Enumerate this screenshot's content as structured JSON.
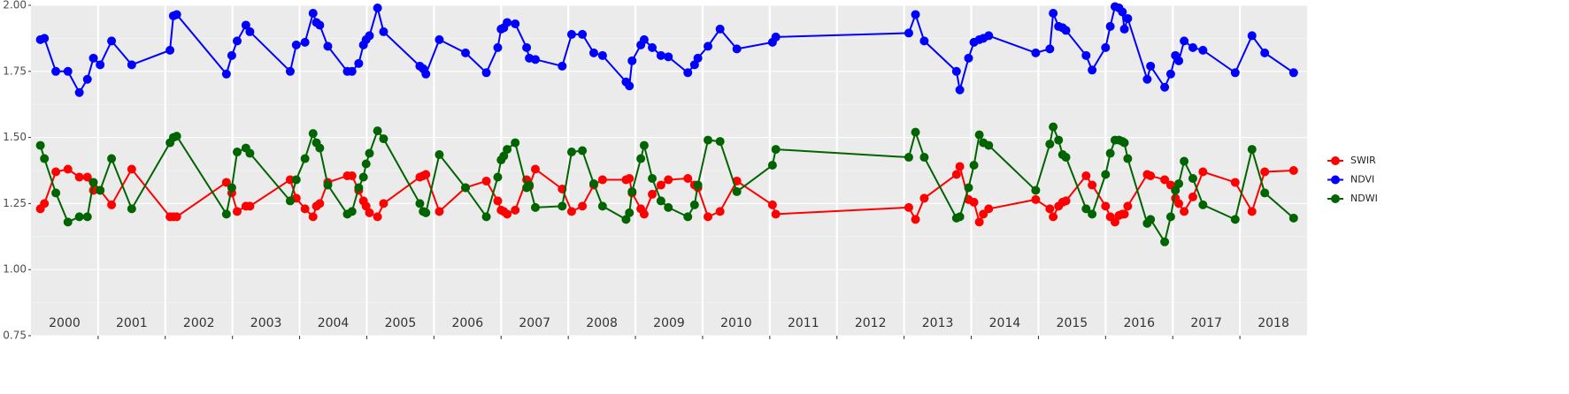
{
  "chart_data": {
    "type": "line",
    "x": [
      2000.14,
      2000.2,
      2000.37,
      2000.55,
      2000.72,
      2000.84,
      2000.93,
      2001.03,
      2001.2,
      2001.5,
      2002.07,
      2002.12,
      2002.17,
      2002.91,
      2002.99,
      2003.07,
      2003.2,
      2003.26,
      2003.86,
      2003.95,
      2004.08,
      2004.2,
      2004.25,
      2004.3,
      2004.42,
      2004.71,
      2004.78,
      2004.88,
      2004.95,
      2004.99,
      2005.04,
      2005.16,
      2005.25,
      2005.79,
      2005.84,
      2005.88,
      2006.08,
      2006.47,
      2006.78,
      2006.95,
      2007.0,
      2007.04,
      2007.09,
      2007.21,
      2007.38,
      2007.42,
      2007.51,
      2007.91,
      2008.05,
      2008.21,
      2008.38,
      2008.51,
      2008.86,
      2008.91,
      2008.95,
      2009.08,
      2009.13,
      2009.25,
      2009.38,
      2009.49,
      2009.78,
      2009.88,
      2009.93,
      2010.08,
      2010.26,
      2010.51,
      2011.04,
      2011.09,
      2013.07,
      2013.17,
      2013.3,
      2013.78,
      2013.83,
      2013.96,
      2014.04,
      2014.12,
      2014.18,
      2014.26,
      2014.96,
      2015.17,
      2015.22,
      2015.3,
      2015.36,
      2015.41,
      2015.71,
      2015.8,
      2016.0,
      2016.07,
      2016.14,
      2016.2,
      2016.25,
      2016.28,
      2016.33,
      2016.62,
      2016.67,
      2016.88,
      2016.97,
      2017.04,
      2017.09,
      2017.17,
      2017.3,
      2017.45,
      2017.93,
      2018.18,
      2018.37,
      2018.8
    ],
    "series": [
      {
        "name": "SWIR",
        "color": "#ff0000",
        "values": [
          1.23,
          1.25,
          1.37,
          1.38,
          1.35,
          1.35,
          1.3,
          1.3,
          1.245,
          1.38,
          1.2,
          1.2,
          1.2,
          1.33,
          1.29,
          1.22,
          1.24,
          1.24,
          1.34,
          1.27,
          1.23,
          1.2,
          1.24,
          1.25,
          1.33,
          1.355,
          1.355,
          1.3,
          1.26,
          1.24,
          1.215,
          1.2,
          1.25,
          1.35,
          1.355,
          1.36,
          1.22,
          1.31,
          1.335,
          1.26,
          1.225,
          1.22,
          1.21,
          1.225,
          1.34,
          1.315,
          1.38,
          1.305,
          1.22,
          1.24,
          1.32,
          1.34,
          1.34,
          1.345,
          1.29,
          1.23,
          1.21,
          1.285,
          1.32,
          1.34,
          1.345,
          1.32,
          1.31,
          1.2,
          1.22,
          1.335,
          1.245,
          1.21,
          1.235,
          1.19,
          1.27,
          1.36,
          1.39,
          1.265,
          1.255,
          1.18,
          1.21,
          1.23,
          1.265,
          1.23,
          1.2,
          1.24,
          1.255,
          1.26,
          1.355,
          1.32,
          1.24,
          1.2,
          1.18,
          1.205,
          1.21,
          1.21,
          1.24,
          1.36,
          1.355,
          1.34,
          1.32,
          1.27,
          1.25,
          1.22,
          1.275,
          1.37,
          1.33,
          1.22,
          1.37,
          1.375
        ]
      },
      {
        "name": "NDVI",
        "color": "#0000ff",
        "values": [
          1.87,
          1.875,
          1.75,
          1.75,
          1.67,
          1.72,
          1.8,
          1.775,
          1.865,
          1.775,
          1.83,
          1.96,
          1.965,
          1.74,
          1.81,
          1.865,
          1.925,
          1.9,
          1.75,
          1.85,
          1.86,
          1.97,
          1.935,
          1.925,
          1.845,
          1.75,
          1.75,
          1.78,
          1.85,
          1.87,
          1.885,
          1.99,
          1.9,
          1.77,
          1.76,
          1.74,
          1.87,
          1.82,
          1.745,
          1.84,
          1.91,
          1.915,
          1.935,
          1.93,
          1.84,
          1.8,
          1.795,
          1.77,
          1.89,
          1.89,
          1.82,
          1.81,
          1.71,
          1.695,
          1.79,
          1.85,
          1.87,
          1.84,
          1.81,
          1.805,
          1.745,
          1.775,
          1.8,
          1.845,
          1.91,
          1.835,
          1.86,
          1.88,
          1.895,
          1.965,
          1.865,
          1.75,
          1.68,
          1.8,
          1.86,
          1.87,
          1.875,
          1.885,
          1.82,
          1.835,
          1.97,
          1.92,
          1.915,
          1.905,
          1.81,
          1.755,
          1.84,
          1.92,
          1.995,
          1.99,
          1.975,
          1.91,
          1.95,
          1.72,
          1.77,
          1.69,
          1.74,
          1.81,
          1.79,
          1.865,
          1.84,
          1.83,
          1.745,
          1.885,
          1.82,
          1.745
        ]
      },
      {
        "name": "NDWI",
        "color": "#006400",
        "values": [
          1.47,
          1.42,
          1.29,
          1.18,
          1.2,
          1.2,
          1.33,
          1.3,
          1.42,
          1.23,
          1.48,
          1.5,
          1.505,
          1.21,
          1.31,
          1.445,
          1.46,
          1.44,
          1.26,
          1.34,
          1.42,
          1.515,
          1.48,
          1.46,
          1.32,
          1.21,
          1.22,
          1.31,
          1.35,
          1.4,
          1.44,
          1.525,
          1.495,
          1.25,
          1.22,
          1.215,
          1.435,
          1.31,
          1.2,
          1.35,
          1.415,
          1.43,
          1.455,
          1.48,
          1.31,
          1.32,
          1.235,
          1.24,
          1.445,
          1.45,
          1.325,
          1.24,
          1.19,
          1.215,
          1.295,
          1.42,
          1.47,
          1.345,
          1.26,
          1.235,
          1.2,
          1.245,
          1.32,
          1.49,
          1.485,
          1.295,
          1.395,
          1.455,
          1.425,
          1.52,
          1.425,
          1.195,
          1.2,
          1.31,
          1.395,
          1.51,
          1.48,
          1.47,
          1.3,
          1.475,
          1.54,
          1.49,
          1.435,
          1.425,
          1.23,
          1.21,
          1.36,
          1.44,
          1.49,
          1.49,
          1.485,
          1.48,
          1.42,
          1.175,
          1.19,
          1.105,
          1.2,
          1.3,
          1.325,
          1.41,
          1.345,
          1.245,
          1.19,
          1.455,
          1.29,
          1.195
        ]
      }
    ],
    "xlim": [
      2000,
      2019
    ],
    "xticks": [
      2001,
      2002,
      2003,
      2004,
      2005,
      2006,
      2007,
      2008,
      2009,
      2010,
      2011,
      2012,
      2013,
      2014,
      2015,
      2016,
      2017,
      2018
    ],
    "year_labels": [
      2000,
      2001,
      2002,
      2003,
      2004,
      2005,
      2006,
      2007,
      2008,
      2009,
      2010,
      2011,
      2012,
      2013,
      2014,
      2015,
      2016,
      2017,
      2018
    ],
    "ylim": [
      0.75,
      2.0
    ],
    "yticks": [
      {
        "value": 0.75,
        "label": "0.75"
      },
      {
        "value": 1.0,
        "label": "1.00"
      },
      {
        "value": 1.25,
        "label": "1.25"
      },
      {
        "value": 1.5,
        "label": "1.50"
      },
      {
        "value": 1.75,
        "label": "1.75"
      },
      {
        "value": 2.0,
        "label": "2.00"
      }
    ],
    "grid": true
  }
}
